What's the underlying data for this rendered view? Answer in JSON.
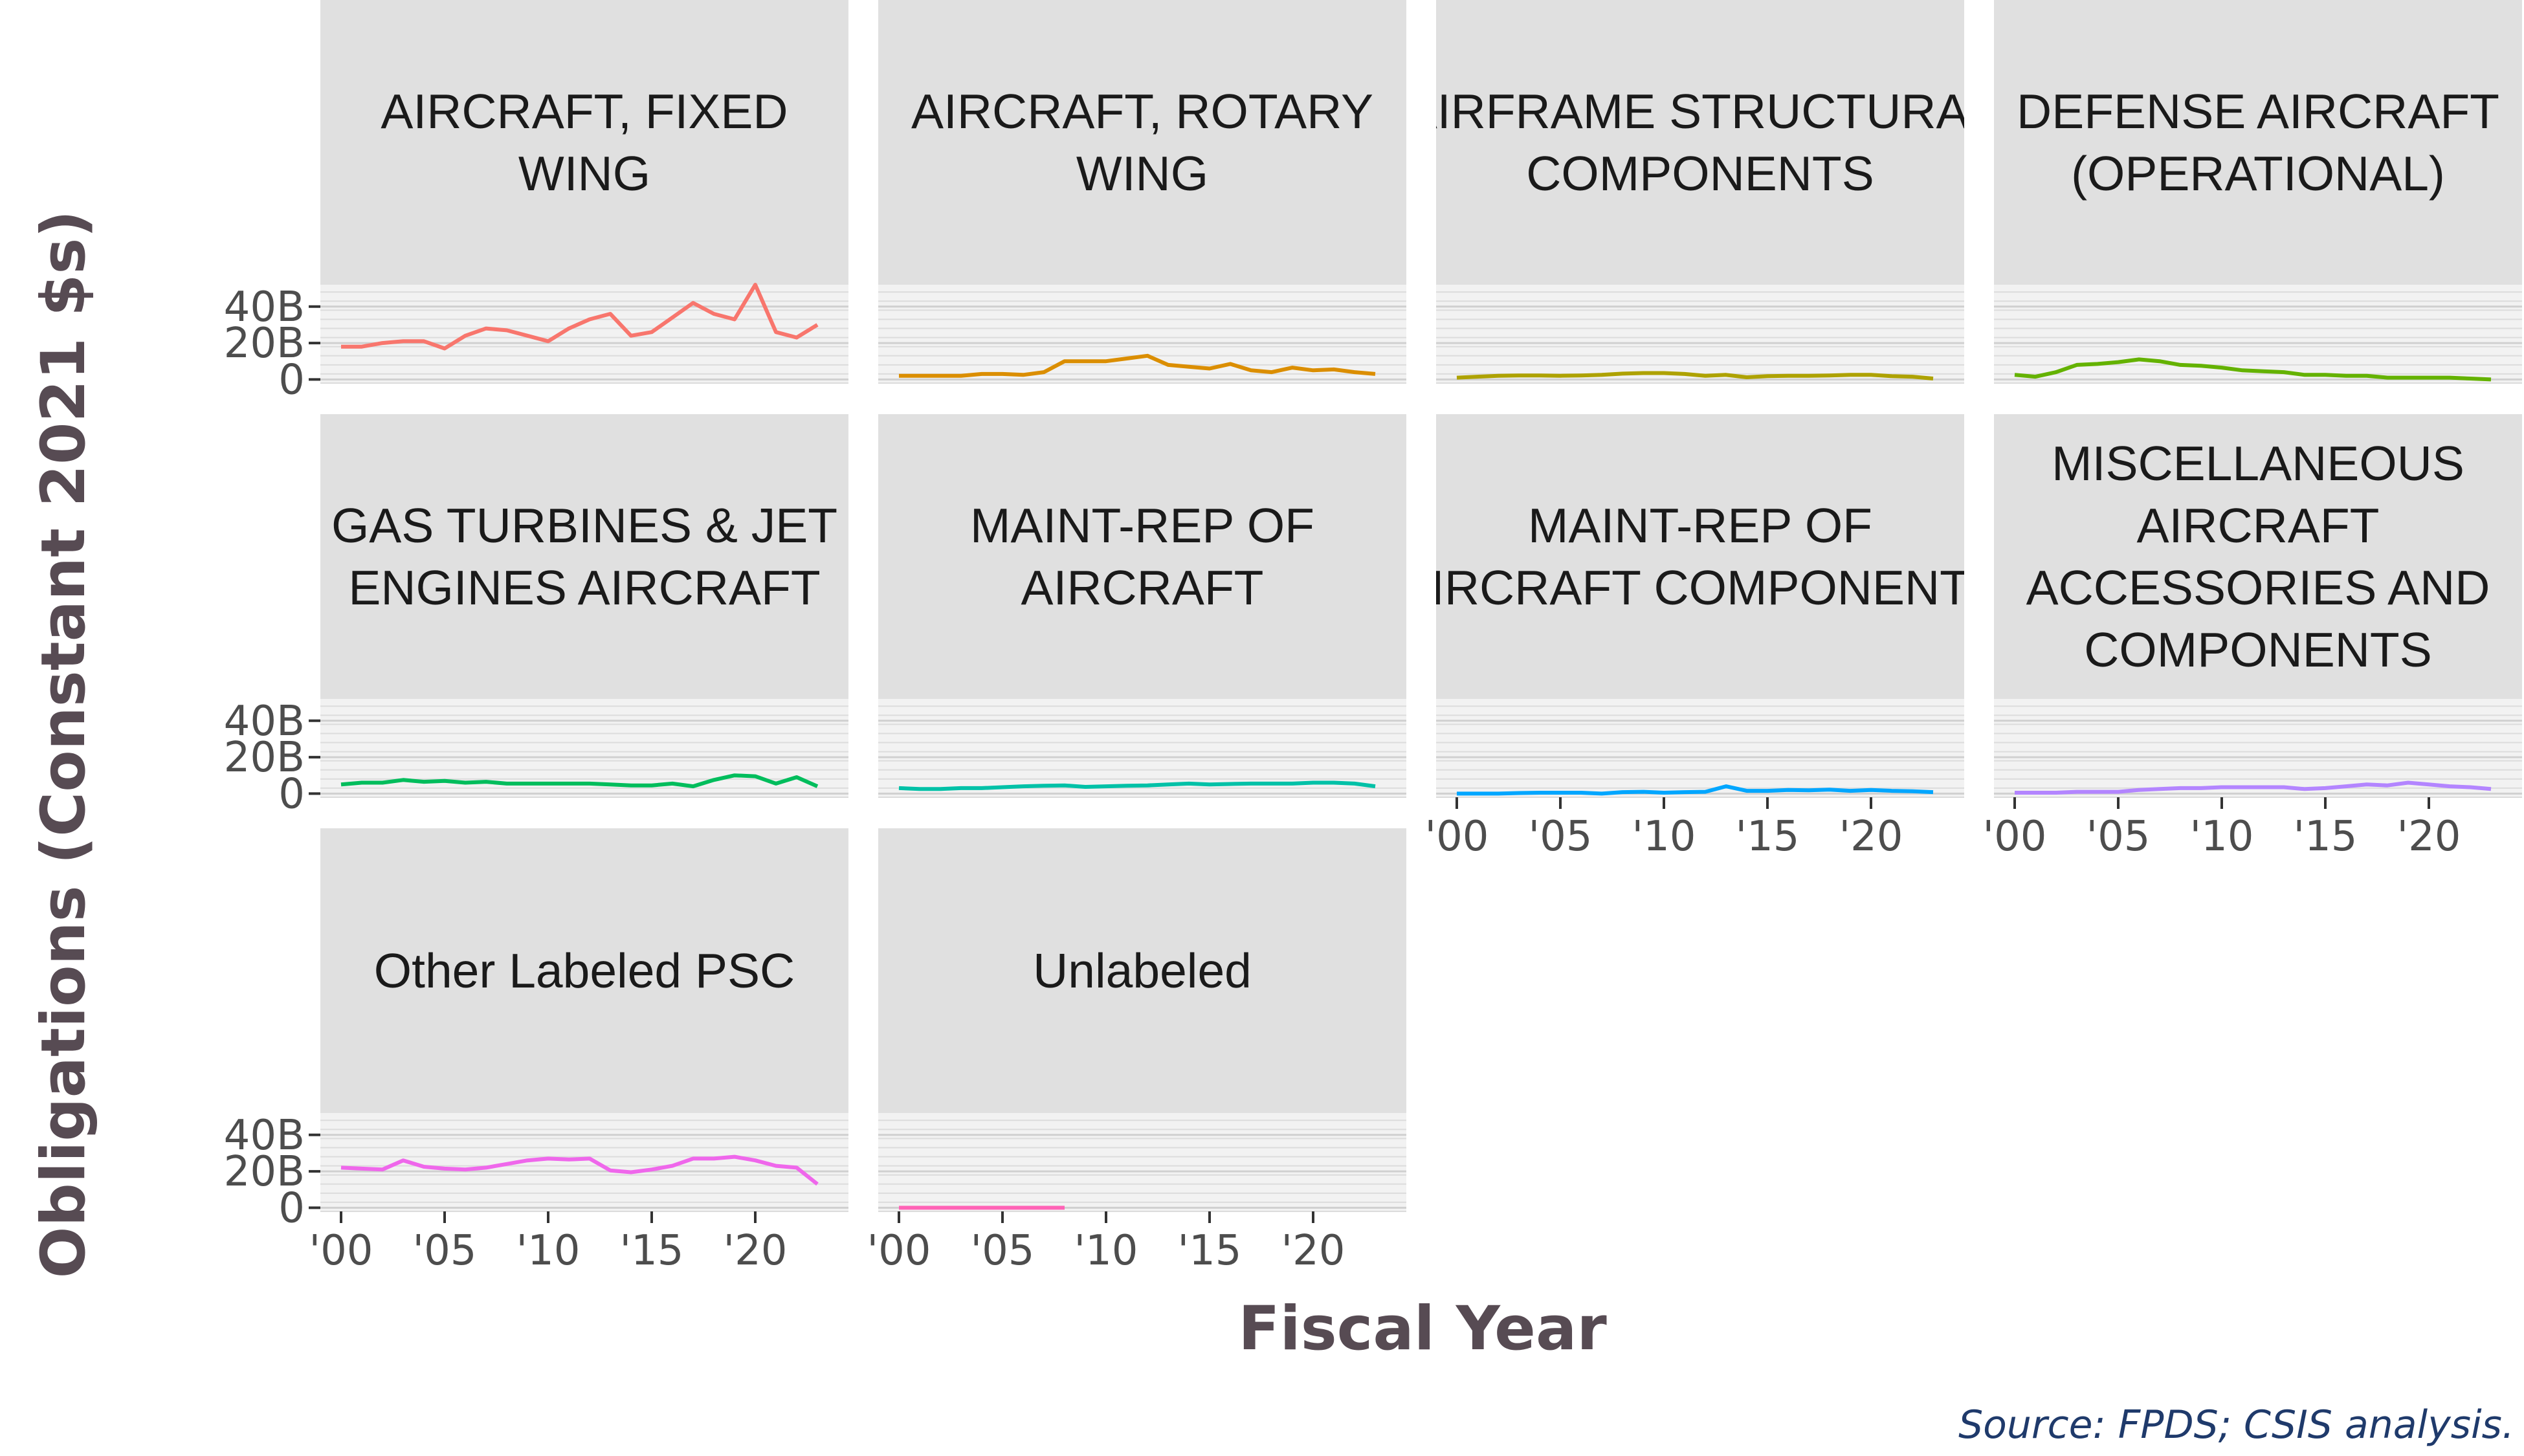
{
  "chart_data": {
    "type": "line",
    "facet_layout": "wrap-4-columns",
    "xlabel": "Fiscal Year",
    "ylabel": "Obligations (Constant 2021 $s)",
    "caption": "Source: FPDS; CSIS analysis.",
    "x_tick_labels": [
      "'00",
      "'05",
      "'10",
      "'15",
      "'20"
    ],
    "x_ticks": [
      2000,
      2005,
      2010,
      2015,
      2020
    ],
    "y_tick_labels": [
      "0",
      "20B",
      "40B"
    ],
    "y_ticks": [
      0,
      20,
      40
    ],
    "y_unit": "billions",
    "xlim": [
      1999,
      2024.5
    ],
    "ylim": [
      -2,
      52
    ],
    "grid": true,
    "legend": "none",
    "panels": [
      {
        "name": "AIRCRAFT, FIXED WING",
        "label_lines": [
          "AIRCRAFT, FIXED",
          "WING"
        ],
        "color": "#f8766d",
        "x": [
          2000,
          2001,
          2002,
          2003,
          2004,
          2005,
          2006,
          2007,
          2008,
          2009,
          2010,
          2011,
          2012,
          2013,
          2014,
          2015,
          2016,
          2017,
          2018,
          2019,
          2020,
          2021,
          2022,
          2023
        ],
        "values": [
          18,
          18,
          20,
          21,
          21,
          17,
          24,
          28,
          27,
          24,
          21,
          28,
          33,
          36,
          24,
          26,
          34,
          42,
          36,
          33,
          52,
          26,
          23,
          30
        ]
      },
      {
        "name": "AIRCRAFT, ROTARY WING",
        "label_lines": [
          "AIRCRAFT, ROTARY",
          "WING"
        ],
        "color": "#db8e00",
        "x": [
          2000,
          2001,
          2002,
          2003,
          2004,
          2005,
          2006,
          2007,
          2008,
          2009,
          2010,
          2011,
          2012,
          2013,
          2014,
          2015,
          2016,
          2017,
          2018,
          2019,
          2020,
          2021,
          2022,
          2023
        ],
        "values": [
          2,
          2,
          2,
          2,
          3,
          3,
          2.5,
          4,
          10,
          10,
          10,
          11.5,
          13,
          8,
          7,
          6,
          8.5,
          5,
          4,
          6.5,
          5,
          5.5,
          4,
          3
        ]
      },
      {
        "name": "AIRFRAME STRUCTURAL COMPONENTS",
        "label_lines": [
          "AIRFRAME STRUCTURAL",
          "COMPONENTS"
        ],
        "color": "#aea200",
        "x": [
          2000,
          2001,
          2002,
          2003,
          2004,
          2005,
          2006,
          2007,
          2008,
          2009,
          2010,
          2011,
          2012,
          2013,
          2014,
          2015,
          2016,
          2017,
          2018,
          2019,
          2020,
          2021,
          2022,
          2023
        ],
        "values": [
          1,
          1.5,
          2,
          2.2,
          2.2,
          2,
          2.2,
          2.5,
          3.2,
          3.5,
          3.5,
          3,
          2,
          2.5,
          1.2,
          1.8,
          2,
          2,
          2.2,
          2.5,
          2.5,
          1.8,
          1.5,
          0.5
        ]
      },
      {
        "name": "DEFENSE AIRCRAFT (OPERATIONAL)",
        "label_lines": [
          "DEFENSE AIRCRAFT",
          "(OPERATIONAL)"
        ],
        "color": "#64b200",
        "x": [
          2000,
          2001,
          2002,
          2003,
          2004,
          2005,
          2006,
          2007,
          2008,
          2009,
          2010,
          2011,
          2012,
          2013,
          2014,
          2015,
          2016,
          2017,
          2018,
          2019,
          2020,
          2021,
          2022,
          2023
        ],
        "values": [
          2.5,
          1.5,
          4,
          8,
          8.5,
          9.5,
          11,
          10,
          8,
          7.5,
          6.5,
          5,
          4.5,
          4,
          2.5,
          2.5,
          2,
          2,
          1,
          1,
          1,
          1,
          0.5,
          0
        ]
      },
      {
        "name": "GAS TURBINES & JET ENGINES AIRCRAFT",
        "label_lines": [
          "GAS TURBINES & JET",
          "ENGINES AIRCRAFT"
        ],
        "color": "#00bd5c",
        "x": [
          2000,
          2001,
          2002,
          2003,
          2004,
          2005,
          2006,
          2007,
          2008,
          2009,
          2010,
          2011,
          2012,
          2013,
          2014,
          2015,
          2016,
          2017,
          2018,
          2019,
          2020,
          2021,
          2022,
          2023
        ],
        "values": [
          5,
          6,
          6,
          7.5,
          6.5,
          7,
          6,
          6.5,
          5.5,
          5.5,
          5.5,
          5.5,
          5.5,
          5,
          4.5,
          4.5,
          5.5,
          4,
          7.5,
          10,
          9.5,
          5.5,
          9,
          4
        ]
      },
      {
        "name": "MAINT-REP OF AIRCRAFT",
        "label_lines": [
          "MAINT-REP OF",
          "AIRCRAFT"
        ],
        "color": "#00c1a7",
        "x": [
          2000,
          2001,
          2002,
          2003,
          2004,
          2005,
          2006,
          2007,
          2008,
          2009,
          2010,
          2011,
          2012,
          2013,
          2014,
          2015,
          2016,
          2017,
          2018,
          2019,
          2020,
          2021,
          2022,
          2023
        ],
        "values": [
          3,
          2.5,
          2.5,
          3,
          3,
          3.5,
          4,
          4.3,
          4.5,
          3.7,
          4,
          4.3,
          4.5,
          5,
          5.5,
          5,
          5.3,
          5.5,
          5.5,
          5.5,
          6,
          6,
          5.5,
          4
        ]
      },
      {
        "name": "MAINT-REP OF AIRCRAFT COMPONENTS",
        "label_lines": [
          "MAINT-REP OF",
          "AIRCRAFT COMPONENTS"
        ],
        "color": "#00a6ff",
        "x": [
          2000,
          2001,
          2002,
          2003,
          2004,
          2005,
          2006,
          2007,
          2008,
          2009,
          2010,
          2011,
          2012,
          2013,
          2014,
          2015,
          2016,
          2017,
          2018,
          2019,
          2020,
          2021,
          2022,
          2023
        ],
        "values": [
          0,
          0,
          0,
          0.3,
          0.5,
          0.5,
          0.5,
          0,
          0.8,
          1,
          0.5,
          0.8,
          1,
          4,
          1.5,
          1.5,
          2,
          1.8,
          2.2,
          1.5,
          2,
          1.5,
          1.3,
          0.8
        ]
      },
      {
        "name": "MISCELLANEOUS AIRCRAFT ACCESSORIES AND COMPONENTS",
        "label_lines": [
          "MISCELLANEOUS",
          "AIRCRAFT",
          "ACCESSORIES AND",
          "COMPONENTS"
        ],
        "color": "#b385ff",
        "x": [
          2000,
          2001,
          2002,
          2003,
          2004,
          2005,
          2006,
          2007,
          2008,
          2009,
          2010,
          2011,
          2012,
          2013,
          2014,
          2015,
          2016,
          2017,
          2018,
          2019,
          2020,
          2021,
          2022,
          2023
        ],
        "values": [
          0.5,
          0.5,
          0.5,
          1,
          1,
          1,
          2,
          2.5,
          3,
          3,
          3.5,
          3.5,
          3.5,
          3.5,
          2.5,
          3,
          4,
          5,
          4.5,
          6,
          5,
          4,
          3.5,
          2.5
        ]
      },
      {
        "name": "Other Labeled PSC",
        "label_lines": [
          "Other Labeled PSC"
        ],
        "color": "#ef67eb",
        "x": [
          2000,
          2001,
          2002,
          2003,
          2004,
          2005,
          2006,
          2007,
          2008,
          2009,
          2010,
          2011,
          2012,
          2013,
          2014,
          2015,
          2016,
          2017,
          2018,
          2019,
          2020,
          2021,
          2022,
          2023
        ],
        "values": [
          22,
          21.5,
          21,
          26,
          22.5,
          21.5,
          21,
          22,
          24,
          26,
          27,
          26.5,
          27,
          20.5,
          19.5,
          21,
          23,
          27,
          27,
          28,
          26,
          23,
          22,
          13
        ]
      },
      {
        "name": "Unlabeled",
        "label_lines": [
          "Unlabeled"
        ],
        "color": "#ff63b6",
        "x": [
          2000,
          2001,
          2002,
          2003,
          2004,
          2005,
          2006,
          2007,
          2008
        ],
        "values": [
          0,
          0,
          0,
          0,
          0,
          0,
          0,
          0,
          0
        ]
      }
    ]
  }
}
